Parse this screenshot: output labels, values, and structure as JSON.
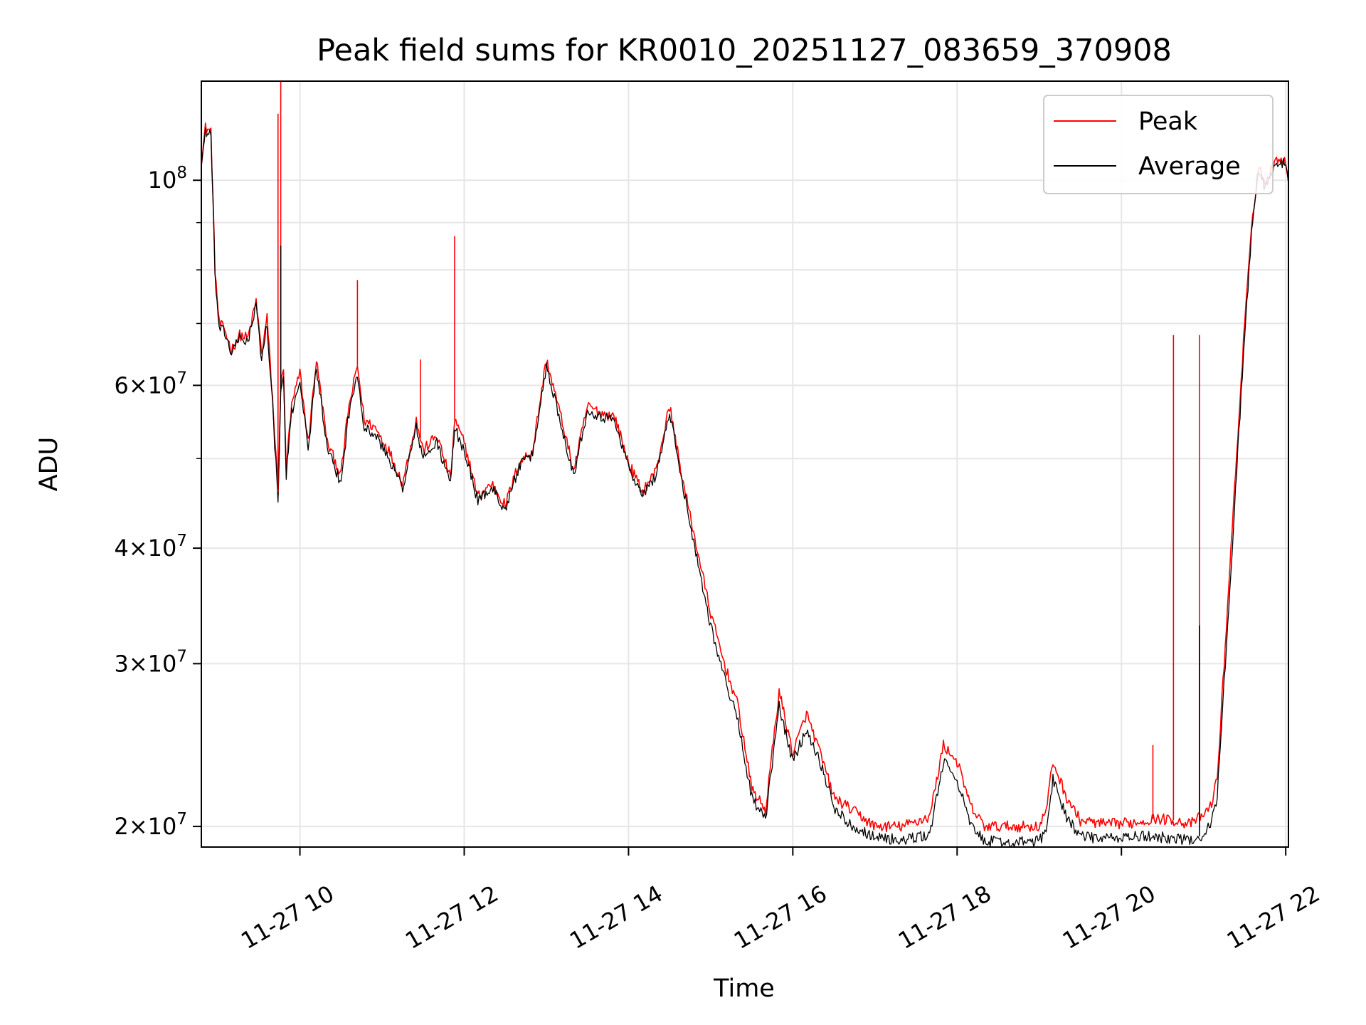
{
  "chart_data": {
    "type": "line",
    "title": "Peak field sums for KR0010_20251127_083659_370908",
    "xlabel": "Time",
    "ylabel": "ADU",
    "yscale": "log",
    "xlim": [
      "2025-11-27 08:48",
      "2025-11-27 22:02"
    ],
    "ylim": [
      19000000,
      128000000
    ],
    "grid": true,
    "legend": "top-right",
    "x_ticks": [
      {
        "value": "2025-11-27 10:00",
        "label": "11-27 10"
      },
      {
        "value": "2025-11-27 12:00",
        "label": "11-27 12"
      },
      {
        "value": "2025-11-27 14:00",
        "label": "11-27 14"
      },
      {
        "value": "2025-11-27 16:00",
        "label": "11-27 16"
      },
      {
        "value": "2025-11-27 18:00",
        "label": "11-27 18"
      },
      {
        "value": "2025-11-27 20:00",
        "label": "11-27 20"
      },
      {
        "value": "2025-11-27 22:00",
        "label": "11-27 22"
      }
    ],
    "y_ticks": [
      {
        "value": 20000000,
        "mantissa": "2",
        "base": "10",
        "exp": "7"
      },
      {
        "value": 30000000,
        "mantissa": "3",
        "base": "10",
        "exp": "7"
      },
      {
        "value": 40000000,
        "mantissa": "4",
        "base": "10",
        "exp": "7"
      },
      {
        "value": 60000000,
        "mantissa": "6",
        "base": "10",
        "exp": "7"
      },
      {
        "value": 100000000,
        "mantissa": "",
        "base": "10",
        "exp": "8"
      }
    ],
    "y_minor_ticks": [
      50000000,
      70000000,
      80000000,
      90000000
    ],
    "series": [
      {
        "name": "Peak",
        "color": "#ff0000",
        "x": [
          "2025-11-27 08:48",
          "2025-11-27 08:51",
          "2025-11-27 08:55",
          "2025-11-27 08:58",
          "2025-11-27 09:01",
          "2025-11-27 09:05",
          "2025-11-27 09:10",
          "2025-11-27 09:16",
          "2025-11-27 09:22",
          "2025-11-27 09:28",
          "2025-11-27 09:32",
          "2025-11-27 09:36",
          "2025-11-27 09:40",
          "2025-11-27 09:44",
          "2025-11-27 09:46",
          "2025-11-27 09:48",
          "2025-11-27 09:50",
          "2025-11-27 09:54",
          "2025-11-27 10:00",
          "2025-11-27 10:06",
          "2025-11-27 10:12",
          "2025-11-27 10:20",
          "2025-11-27 10:30",
          "2025-11-27 10:35",
          "2025-11-27 10:42",
          "2025-11-27 10:47",
          "2025-11-27 10:55",
          "2025-11-27 11:05",
          "2025-11-27 11:15",
          "2025-11-27 11:25",
          "2025-11-27 11:30",
          "2025-11-27 11:40",
          "2025-11-27 11:50",
          "2025-11-27 11:53",
          "2025-11-27 12:00",
          "2025-11-27 12:10",
          "2025-11-27 12:20",
          "2025-11-27 12:30",
          "2025-11-27 12:40",
          "2025-11-27 12:50",
          "2025-11-27 13:00",
          "2025-11-27 13:10",
          "2025-11-27 13:20",
          "2025-11-27 13:30",
          "2025-11-27 13:40",
          "2025-11-27 13:50",
          "2025-11-27 14:00",
          "2025-11-27 14:10",
          "2025-11-27 14:20",
          "2025-11-27 14:30",
          "2025-11-27 14:40",
          "2025-11-27 14:50",
          "2025-11-27 15:00",
          "2025-11-27 15:10",
          "2025-11-27 15:20",
          "2025-11-27 15:30",
          "2025-11-27 15:40",
          "2025-11-27 15:50",
          "2025-11-27 16:00",
          "2025-11-27 16:10",
          "2025-11-27 16:20",
          "2025-11-27 16:30",
          "2025-11-27 16:40",
          "2025-11-27 16:50",
          "2025-11-27 17:00",
          "2025-11-27 17:20",
          "2025-11-27 17:40",
          "2025-11-27 17:50",
          "2025-11-27 18:00",
          "2025-11-27 18:10",
          "2025-11-27 18:20",
          "2025-11-27 18:40",
          "2025-11-27 19:00",
          "2025-11-27 19:05",
          "2025-11-27 19:10",
          "2025-11-27 19:20",
          "2025-11-27 19:30",
          "2025-11-27 19:50",
          "2025-11-27 20:10",
          "2025-11-27 20:25",
          "2025-11-27 20:40",
          "2025-11-27 20:50",
          "2025-11-27 21:00",
          "2025-11-27 21:05",
          "2025-11-27 21:10",
          "2025-11-27 21:20",
          "2025-11-27 21:30",
          "2025-11-27 21:35",
          "2025-11-27 21:40",
          "2025-11-27 21:45",
          "2025-11-27 21:50",
          "2025-11-27 21:55",
          "2025-11-27 22:00",
          "2025-11-27 22:02"
        ],
        "y": [
          105000000,
          114000000,
          113000000,
          80000000,
          70000000,
          69000000,
          65500000,
          68000000,
          67500000,
          74000000,
          65000000,
          71000000,
          58000000,
          46000000,
          60000000,
          62000000,
          49000000,
          57000000,
          62000000,
          52000000,
          64000000,
          52000000,
          48000000,
          56000000,
          63000000,
          55000000,
          54000000,
          51000000,
          47000000,
          55000000,
          51000000,
          53000000,
          47500000,
          55000000,
          52000000,
          45500000,
          47000000,
          44500000,
          49500000,
          51000000,
          64000000,
          56000000,
          48500000,
          57000000,
          56000000,
          55500000,
          49500000,
          46000000,
          48500000,
          57000000,
          47000000,
          40000000,
          34000000,
          30000000,
          27000000,
          22000000,
          20800000,
          28000000,
          24000000,
          26500000,
          24000000,
          21500000,
          21000000,
          20500000,
          20000000,
          20000000,
          20500000,
          24500000,
          23500000,
          21000000,
          20000000,
          20000000,
          20000000,
          20800000,
          23500000,
          21500000,
          20300000,
          20100000,
          20200000,
          20400000,
          20300000,
          20100000,
          20600000,
          21000000,
          22500000,
          40000000,
          70000000,
          88000000,
          104000000,
          99000000,
          103000000,
          106000000,
          105000000,
          100000000
        ]
      },
      {
        "name": "Average",
        "color": "#000000",
        "x": [
          "2025-11-27 08:48",
          "2025-11-27 08:51",
          "2025-11-27 08:55",
          "2025-11-27 08:58",
          "2025-11-27 09:01",
          "2025-11-27 09:05",
          "2025-11-27 09:10",
          "2025-11-27 09:16",
          "2025-11-27 09:22",
          "2025-11-27 09:28",
          "2025-11-27 09:32",
          "2025-11-27 09:36",
          "2025-11-27 09:40",
          "2025-11-27 09:44",
          "2025-11-27 09:46",
          "2025-11-27 09:48",
          "2025-11-27 09:50",
          "2025-11-27 09:54",
          "2025-11-27 10:00",
          "2025-11-27 10:06",
          "2025-11-27 10:12",
          "2025-11-27 10:20",
          "2025-11-27 10:30",
          "2025-11-27 10:35",
          "2025-11-27 10:42",
          "2025-11-27 10:47",
          "2025-11-27 10:55",
          "2025-11-27 11:05",
          "2025-11-27 11:15",
          "2025-11-27 11:25",
          "2025-11-27 11:30",
          "2025-11-27 11:40",
          "2025-11-27 11:50",
          "2025-11-27 11:53",
          "2025-11-27 12:00",
          "2025-11-27 12:10",
          "2025-11-27 12:20",
          "2025-11-27 12:30",
          "2025-11-27 12:40",
          "2025-11-27 12:50",
          "2025-11-27 13:00",
          "2025-11-27 13:10",
          "2025-11-27 13:20",
          "2025-11-27 13:30",
          "2025-11-27 13:40",
          "2025-11-27 13:50",
          "2025-11-27 14:00",
          "2025-11-27 14:10",
          "2025-11-27 14:20",
          "2025-11-27 14:30",
          "2025-11-27 14:40",
          "2025-11-27 14:50",
          "2025-11-27 15:00",
          "2025-11-27 15:10",
          "2025-11-27 15:20",
          "2025-11-27 15:30",
          "2025-11-27 15:40",
          "2025-11-27 15:50",
          "2025-11-27 16:00",
          "2025-11-27 16:10",
          "2025-11-27 16:20",
          "2025-11-27 16:30",
          "2025-11-27 16:40",
          "2025-11-27 16:50",
          "2025-11-27 17:00",
          "2025-11-27 17:20",
          "2025-11-27 17:40",
          "2025-11-27 17:50",
          "2025-11-27 18:00",
          "2025-11-27 18:10",
          "2025-11-27 18:20",
          "2025-11-27 18:40",
          "2025-11-27 19:00",
          "2025-11-27 19:05",
          "2025-11-27 19:10",
          "2025-11-27 19:20",
          "2025-11-27 19:30",
          "2025-11-27 19:50",
          "2025-11-27 20:10",
          "2025-11-27 20:25",
          "2025-11-27 20:40",
          "2025-11-27 20:50",
          "2025-11-27 21:00",
          "2025-11-27 21:05",
          "2025-11-27 21:10",
          "2025-11-27 21:20",
          "2025-11-27 21:30",
          "2025-11-27 21:35",
          "2025-11-27 21:40",
          "2025-11-27 21:45",
          "2025-11-27 21:50",
          "2025-11-27 21:55",
          "2025-11-27 22:00",
          "2025-11-27 22:02"
        ],
        "y": [
          104000000,
          113000000,
          112000000,
          79000000,
          69000000,
          68500000,
          65000000,
          67500000,
          67000000,
          73000000,
          64000000,
          70000000,
          57000000,
          45000000,
          59000000,
          61000000,
          48000000,
          56000000,
          61000000,
          51000000,
          63000000,
          51000000,
          47000000,
          55000000,
          62000000,
          54000000,
          53000000,
          50000000,
          46500000,
          54000000,
          50000000,
          52000000,
          47000000,
          54000000,
          51000000,
          45000000,
          46500000,
          44000000,
          49000000,
          50500000,
          63000000,
          55000000,
          48000000,
          56500000,
          55500000,
          55000000,
          49000000,
          45500000,
          48000000,
          56000000,
          46500000,
          39000000,
          33000000,
          29000000,
          26000000,
          21500000,
          20300000,
          27000000,
          23500000,
          25500000,
          23500000,
          21000000,
          20200000,
          19800000,
          19500000,
          19300000,
          19600000,
          23500000,
          22500000,
          20000000,
          19300000,
          19200000,
          19300000,
          19800000,
          22500000,
          20500000,
          19500000,
          19400000,
          19500000,
          19500000,
          19400000,
          19300000,
          19600000,
          20100000,
          21500000,
          38000000,
          68000000,
          87000000,
          103000000,
          98000000,
          102000000,
          105000000,
          104000000,
          99000000
        ]
      }
    ],
    "spikes": [
      {
        "series": "Peak",
        "x": "2025-11-27 09:44",
        "y": 118000000
      },
      {
        "series": "Peak",
        "x": "2025-11-27 09:46",
        "y": 128000000
      },
      {
        "series": "Average",
        "x": "2025-11-27 09:46",
        "y": 85000000
      },
      {
        "series": "Peak",
        "x": "2025-11-27 10:42",
        "y": 78000000
      },
      {
        "series": "Peak",
        "x": "2025-11-27 11:28",
        "y": 64000000
      },
      {
        "series": "Peak",
        "x": "2025-11-27 11:53",
        "y": 87000000
      },
      {
        "series": "Peak",
        "x": "2025-11-27 20:23",
        "y": 24500000
      },
      {
        "series": "Peak",
        "x": "2025-11-27 20:38",
        "y": 68000000
      },
      {
        "series": "Peak",
        "x": "2025-11-27 20:57",
        "y": 68000000
      },
      {
        "series": "Average",
        "x": "2025-11-27 20:57",
        "y": 33000000
      }
    ]
  }
}
